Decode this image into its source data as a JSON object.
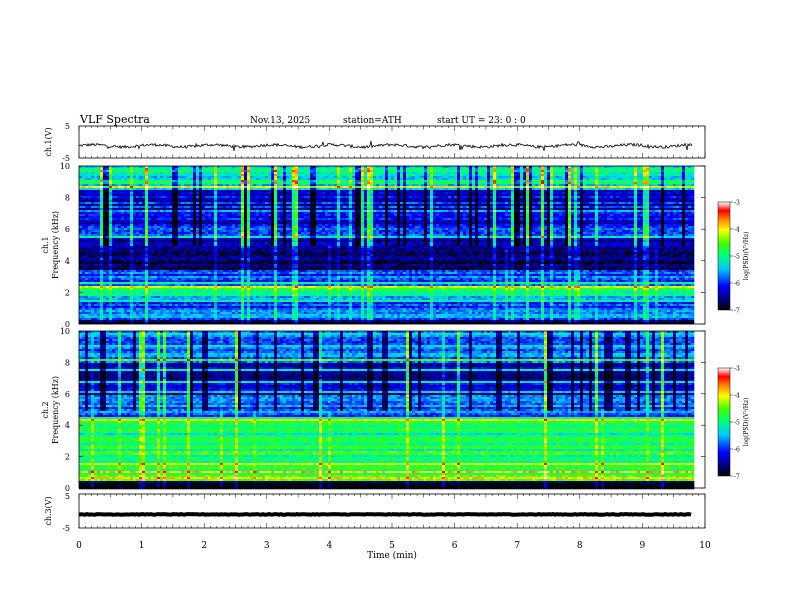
{
  "header": {
    "title": "VLF  Spectra",
    "date": "Nov.13, 2025",
    "station": "station=ATH",
    "start_ut": "start  UT  =    23: 0   : 0"
  },
  "chart_data": [
    {
      "type": "line",
      "name": "ch1-waveform",
      "ylabel": "ch.1(V)",
      "ylim": [
        -5,
        5
      ],
      "yticks": [
        "5",
        "-5"
      ],
      "xlim": [
        0,
        10
      ],
      "trace_range_min": [
        0,
        9.8
      ],
      "baseline_v": -1.2,
      "trace_amplitude_v": 1.0
    },
    {
      "type": "heatmap",
      "name": "ch1-spectrogram",
      "ylabel": "ch.1\nFrequency (kHz)",
      "ylim": [
        0,
        10
      ],
      "yticks": [
        "0",
        "2",
        "4",
        "6",
        "8",
        "10"
      ],
      "xlim": [
        0,
        10
      ],
      "data_extent_min": [
        0,
        9.8
      ],
      "colorbar": {
        "label": "log(PSD)(V²/Hz)",
        "range": [
          -7,
          -3
        ],
        "ticks": [
          "-3",
          "-4",
          "-5",
          "-6",
          "-7"
        ]
      },
      "band_levels": [
        {
          "f_khz": [
            8.5,
            10
          ],
          "log_psd": -5.2
        },
        {
          "f_khz": [
            7,
            8.5
          ],
          "log_psd": -6.2
        },
        {
          "f_khz": [
            5.5,
            7
          ],
          "log_psd": -6.1
        },
        {
          "f_khz": [
            3.5,
            5.5
          ],
          "log_psd": -6.6
        },
        {
          "f_khz": [
            2.5,
            3.5
          ],
          "log_psd": -6.0
        },
        {
          "f_khz": [
            1.5,
            2.5
          ],
          "log_psd": -5.3
        },
        {
          "f_khz": [
            0.3,
            1.5
          ],
          "log_psd": -5.8
        },
        {
          "f_khz": [
            0,
            0.3
          ],
          "log_psd": -7.0
        }
      ]
    },
    {
      "type": "heatmap",
      "name": "ch2-spectrogram",
      "ylabel": "ch.2\nFrequency (kHz)",
      "ylim": [
        0,
        10
      ],
      "yticks": [
        "0",
        "2",
        "4",
        "6",
        "8",
        "10"
      ],
      "xlim": [
        0,
        10
      ],
      "data_extent_min": [
        0,
        9.8
      ],
      "colorbar": {
        "label": "log(PSD)(V²/Hz)",
        "range": [
          -7,
          -3
        ],
        "ticks": [
          "-3",
          "-4",
          "-5",
          "-6",
          "-7"
        ]
      },
      "band_levels": [
        {
          "f_khz": [
            8,
            10
          ],
          "log_psd": -5.6
        },
        {
          "f_khz": [
            6,
            8
          ],
          "log_psd": -6.4
        },
        {
          "f_khz": [
            4.5,
            6
          ],
          "log_psd": -5.8
        },
        {
          "f_khz": [
            3,
            4.5
          ],
          "log_psd": -5.0
        },
        {
          "f_khz": [
            1.5,
            3
          ],
          "log_psd": -4.9
        },
        {
          "f_khz": [
            0.5,
            1.5
          ],
          "log_psd": -4.7
        },
        {
          "f_khz": [
            0,
            0.5
          ],
          "log_psd": -6.8
        }
      ]
    },
    {
      "type": "line",
      "name": "ch3-waveform",
      "ylabel": "ch.3(V)",
      "ylim": [
        -5,
        5
      ],
      "yticks": [
        "5",
        "-5"
      ],
      "xlim": [
        0,
        10
      ],
      "trace_range_min": [
        0,
        9.8
      ],
      "baseline_v": -1.0,
      "trace_amplitude_v": 0.2,
      "xlabel": "Time  (min)",
      "xticks": [
        "0",
        "1",
        "2",
        "3",
        "4",
        "5",
        "6",
        "7",
        "8",
        "9",
        "10"
      ]
    }
  ]
}
